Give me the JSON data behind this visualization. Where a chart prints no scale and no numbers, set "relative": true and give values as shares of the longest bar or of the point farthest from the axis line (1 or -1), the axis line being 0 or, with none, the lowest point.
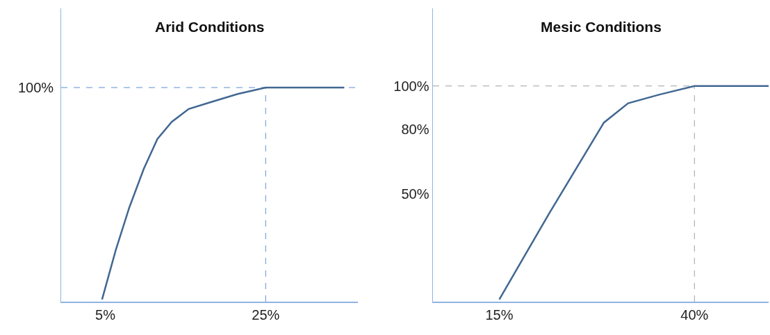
{
  "chart_data": [
    {
      "type": "line",
      "title": "Arid Conditions",
      "x": [
        4.6,
        6.3,
        8.0,
        9.8,
        11.5,
        13.3,
        15.4,
        18.0,
        21.5,
        25,
        34.8
      ],
      "series": [
        {
          "color": "#416792",
          "values": [
            0.01,
            0.24,
            0.44,
            0.62,
            0.76,
            0.84,
            0.9,
            0.93,
            0.97,
            1,
            1
          ]
        }
      ],
      "relative": true,
      "xlim": [
        -0.5,
        36.5
      ],
      "xticks": [
        {
          "value": 5,
          "label": "5%"
        },
        {
          "value": 25,
          "label": "25%"
        }
      ],
      "ref_lines": [
        {
          "axis": "y",
          "value": 1,
          "label": "100%",
          "color": "#5b8fd0",
          "line_style": "dashed"
        },
        {
          "axis": "x",
          "value": 25,
          "color": "#5b8fd0",
          "line_style": "dashed"
        }
      ]
    },
    {
      "type": "line",
      "title": "Mesic Conditions",
      "x": [
        15,
        21.4,
        28.4,
        31.5,
        35.5,
        40,
        49.5
      ],
      "series": [
        {
          "color": "#416792",
          "values": [
            1,
            41,
            83,
            92,
            96,
            100,
            100
          ]
        }
      ],
      "xlim": [
        6.5,
        49.5
      ],
      "xticks": [
        {
          "value": 15,
          "label": "15%"
        },
        {
          "value": 40,
          "label": "40%"
        }
      ],
      "ylim": [
        0,
        136
      ],
      "yticks": [
        {
          "value": 50,
          "label": "50%"
        },
        {
          "value": 80,
          "label": "80%"
        },
        {
          "value": 100,
          "label": "100%"
        }
      ],
      "ref_lines": [
        {
          "axis": "y",
          "value": 100,
          "color": "#a0a0a0",
          "line_style": "dashed"
        },
        {
          "axis": "x",
          "value": 40,
          "color": "#a0a0a0",
          "line_style": "dashed"
        }
      ]
    }
  ]
}
